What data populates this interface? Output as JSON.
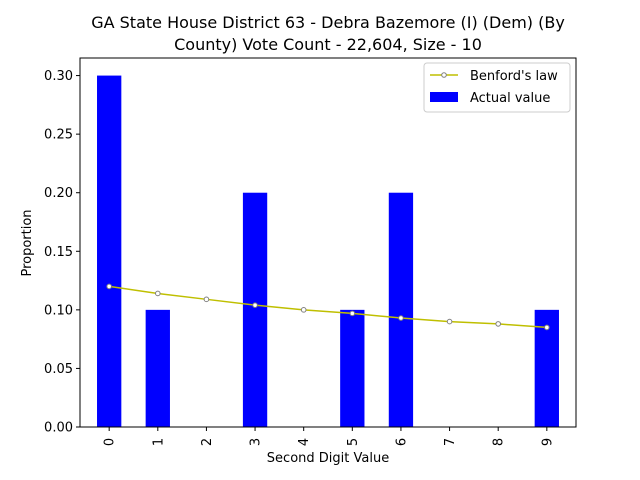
{
  "chart_data": {
    "type": "bar",
    "title_line1": "GA State House District 63 - Debra Bazemore (I) (Dem) (By",
    "title_line2": "County) Vote Count - 22,604, Size - 10",
    "xlabel": "Second Digit Value",
    "ylabel": "Proportion",
    "categories": [
      "0",
      "1",
      "2",
      "3",
      "4",
      "5",
      "6",
      "7",
      "8",
      "9"
    ],
    "series": [
      {
        "name": "Actual value",
        "type": "bar",
        "color": "#0000ff",
        "values": [
          0.3,
          0.1,
          0.0,
          0.2,
          0.0,
          0.1,
          0.2,
          0.0,
          0.0,
          0.1
        ]
      },
      {
        "name": "Benford's law",
        "type": "line",
        "color": "#bfbf00",
        "values": [
          0.12,
          0.114,
          0.109,
          0.104,
          0.1,
          0.097,
          0.093,
          0.09,
          0.088,
          0.085
        ]
      }
    ],
    "ylim": [
      0,
      0.315
    ],
    "yticks": [
      "0.00",
      "0.05",
      "0.10",
      "0.15",
      "0.20",
      "0.25",
      "0.30"
    ],
    "legend_position": "top-right",
    "grid": false
  }
}
